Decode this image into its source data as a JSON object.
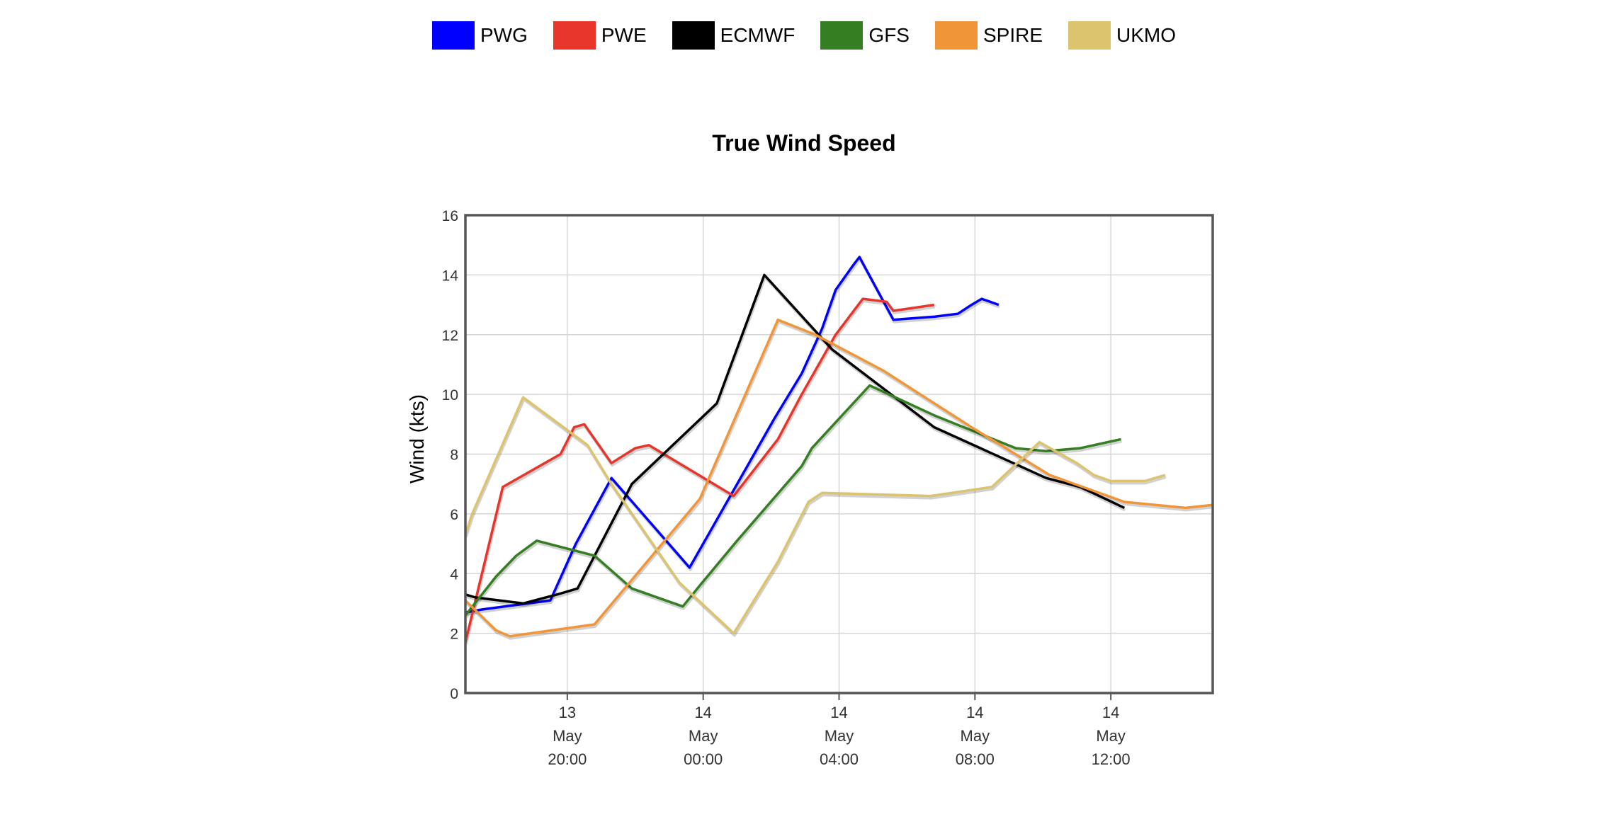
{
  "chart_data": {
    "type": "line",
    "title": "True Wind Speed",
    "xlabel": "",
    "ylabel": "Wind (kts)",
    "ylim": [
      0,
      16
    ],
    "xlim": [
      "2024-05-13 17:00",
      "2024-05-14 15:00"
    ],
    "y_ticks": [
      "0",
      "2",
      "4",
      "6",
      "8",
      "10",
      "12",
      "14",
      "16"
    ],
    "x_ticks": [
      {
        "day": "13",
        "month": "May",
        "time": "20:00",
        "at": "2024-05-13 20:00"
      },
      {
        "day": "14",
        "month": "May",
        "time": "00:00",
        "at": "2024-05-14 00:00"
      },
      {
        "day": "14",
        "month": "May",
        "time": "04:00",
        "at": "2024-05-14 04:00"
      },
      {
        "day": "14",
        "month": "May",
        "time": "08:00",
        "at": "2024-05-14 08:00"
      },
      {
        "day": "14",
        "month": "May",
        "time": "12:00",
        "at": "2024-05-14 12:00"
      }
    ],
    "grid": true,
    "legend_position": "top",
    "series": [
      {
        "name": "PWG",
        "color": "#0000ff",
        "points": [
          [
            "2024-05-13 17:00",
            2.7
          ],
          [
            "2024-05-13 17:30",
            2.8
          ],
          [
            "2024-05-13 19:30",
            3.1
          ],
          [
            "2024-05-13 20:15",
            5.0
          ],
          [
            "2024-05-13 21:18",
            7.2
          ],
          [
            "2024-05-13 23:36",
            4.2
          ],
          [
            "2024-05-14 00:48",
            6.6
          ],
          [
            "2024-05-14 02:06",
            9.2
          ],
          [
            "2024-05-14 02:54",
            10.7
          ],
          [
            "2024-05-14 03:30",
            12.2
          ],
          [
            "2024-05-14 03:54",
            13.5
          ],
          [
            "2024-05-14 04:24",
            14.3
          ],
          [
            "2024-05-14 04:36",
            14.6
          ],
          [
            "2024-05-14 05:36",
            12.5
          ],
          [
            "2024-05-14 06:48",
            12.6
          ],
          [
            "2024-05-14 07:30",
            12.7
          ],
          [
            "2024-05-14 07:54",
            13.0
          ],
          [
            "2024-05-14 08:12",
            13.2
          ],
          [
            "2024-05-14 08:42",
            13.0
          ]
        ]
      },
      {
        "name": "PWE",
        "color": "#e8352b",
        "points": [
          [
            "2024-05-13 17:00",
            1.7
          ],
          [
            "2024-05-13 18:06",
            6.9
          ],
          [
            "2024-05-13 19:48",
            8.0
          ],
          [
            "2024-05-13 20:12",
            8.9
          ],
          [
            "2024-05-13 20:30",
            9.0
          ],
          [
            "2024-05-13 21:18",
            7.7
          ],
          [
            "2024-05-13 22:00",
            8.2
          ],
          [
            "2024-05-13 22:24",
            8.3
          ],
          [
            "2024-05-14 00:54",
            6.6
          ],
          [
            "2024-05-14 02:12",
            8.5
          ],
          [
            "2024-05-14 02:54",
            10.0
          ],
          [
            "2024-05-14 03:54",
            12.0
          ],
          [
            "2024-05-14 04:42",
            13.2
          ],
          [
            "2024-05-14 05:24",
            13.1
          ],
          [
            "2024-05-14 05:36",
            12.8
          ],
          [
            "2024-05-14 06:48",
            13.0
          ]
        ]
      },
      {
        "name": "ECMWF",
        "color": "#000000",
        "points": [
          [
            "2024-05-13 17:00",
            3.3
          ],
          [
            "2024-05-13 17:18",
            3.2
          ],
          [
            "2024-05-13 18:42",
            3.0
          ],
          [
            "2024-05-13 19:42",
            3.3
          ],
          [
            "2024-05-13 20:18",
            3.5
          ],
          [
            "2024-05-13 21:54",
            7.0
          ],
          [
            "2024-05-14 00:24",
            9.7
          ],
          [
            "2024-05-14 01:48",
            14.0
          ],
          [
            "2024-05-14 03:48",
            11.5
          ],
          [
            "2024-05-14 06:48",
            8.9
          ],
          [
            "2024-05-14 10:06",
            7.2
          ],
          [
            "2024-05-14 11:06",
            6.9
          ],
          [
            "2024-05-14 12:24",
            6.2
          ]
        ]
      },
      {
        "name": "GFS",
        "color": "#357e21",
        "points": [
          [
            "2024-05-13 17:00",
            2.6
          ],
          [
            "2024-05-13 17:54",
            3.9
          ],
          [
            "2024-05-13 18:30",
            4.6
          ],
          [
            "2024-05-13 19:06",
            5.1
          ],
          [
            "2024-05-13 20:48",
            4.6
          ],
          [
            "2024-05-13 21:54",
            3.5
          ],
          [
            "2024-05-13 23:24",
            2.9
          ],
          [
            "2024-05-13 23:54",
            3.6
          ],
          [
            "2024-05-14 01:00",
            5.1
          ],
          [
            "2024-05-14 02:54",
            7.6
          ],
          [
            "2024-05-14 03:12",
            8.2
          ],
          [
            "2024-05-14 04:54",
            10.3
          ],
          [
            "2024-05-14 06:48",
            9.3
          ],
          [
            "2024-05-14 09:12",
            8.2
          ],
          [
            "2024-05-14 10:06",
            8.1
          ],
          [
            "2024-05-14 11:06",
            8.2
          ],
          [
            "2024-05-14 12:18",
            8.5
          ]
        ]
      },
      {
        "name": "SPIRE",
        "color": "#f09538",
        "points": [
          [
            "2024-05-13 17:00",
            3.1
          ],
          [
            "2024-05-13 17:54",
            2.1
          ],
          [
            "2024-05-13 18:18",
            1.9
          ],
          [
            "2024-05-13 20:48",
            2.3
          ],
          [
            "2024-05-13 23:54",
            6.5
          ],
          [
            "2024-05-14 02:12",
            12.5
          ],
          [
            "2024-05-14 03:18",
            12.0
          ],
          [
            "2024-05-14 05:18",
            10.8
          ],
          [
            "2024-05-14 07:54",
            8.9
          ],
          [
            "2024-05-14 10:12",
            7.3
          ],
          [
            "2024-05-14 12:24",
            6.4
          ],
          [
            "2024-05-14 14:12",
            6.2
          ],
          [
            "2024-05-14 15:00",
            6.3
          ]
        ]
      },
      {
        "name": "UKMO",
        "color": "#dcc36e",
        "points": [
          [
            "2024-05-13 17:00",
            5.3
          ],
          [
            "2024-05-13 17:12",
            6.0
          ],
          [
            "2024-05-13 18:42",
            9.9
          ],
          [
            "2024-05-13 20:36",
            8.3
          ],
          [
            "2024-05-13 21:18",
            7.0
          ],
          [
            "2024-05-13 23:18",
            3.7
          ],
          [
            "2024-05-14 00:54",
            2.0
          ],
          [
            "2024-05-14 02:12",
            4.4
          ],
          [
            "2024-05-14 03:06",
            6.4
          ],
          [
            "2024-05-14 03:30",
            6.7
          ],
          [
            "2024-05-14 06:42",
            6.6
          ],
          [
            "2024-05-14 08:30",
            6.9
          ],
          [
            "2024-05-14 09:54",
            8.4
          ],
          [
            "2024-05-14 11:00",
            7.7
          ],
          [
            "2024-05-14 11:30",
            7.3
          ],
          [
            "2024-05-14 12:00",
            7.1
          ],
          [
            "2024-05-14 13:00",
            7.1
          ],
          [
            "2024-05-14 13:36",
            7.3
          ]
        ]
      }
    ]
  }
}
